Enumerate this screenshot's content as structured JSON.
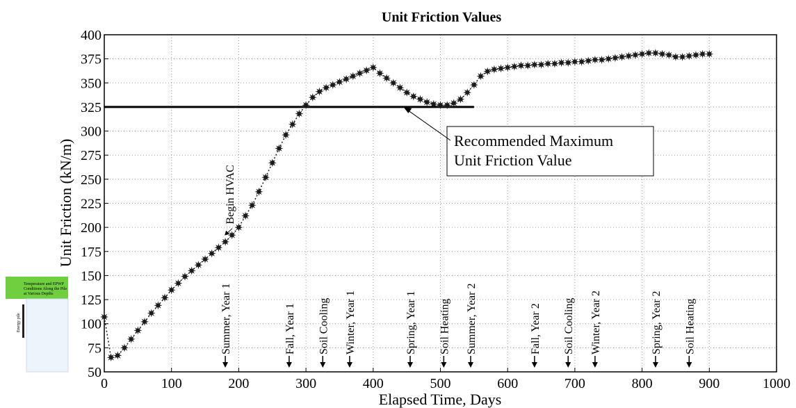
{
  "chart_data": {
    "type": "scatter",
    "title": "Unit Friction Values",
    "xlabel": "Elapsed Time, Days",
    "ylabel": "Unit Friction (kN/m)",
    "xlim": [
      0,
      1000
    ],
    "ylim": [
      50,
      400
    ],
    "xticks": [
      0,
      100,
      200,
      300,
      400,
      500,
      600,
      700,
      800,
      900,
      1000
    ],
    "yticks": [
      50,
      75,
      100,
      125,
      150,
      175,
      200,
      225,
      250,
      275,
      300,
      325,
      350,
      375,
      400
    ],
    "grid": true,
    "series": [
      {
        "color": "#1a1a1a",
        "x": [
          0,
          10,
          20,
          30,
          40,
          50,
          60,
          70,
          80,
          90,
          100,
          110,
          120,
          130,
          140,
          150,
          160,
          170,
          180,
          190,
          200,
          210,
          220,
          230,
          240,
          250,
          260,
          270,
          280,
          290,
          300,
          310,
          320,
          330,
          340,
          350,
          360,
          370,
          380,
          390,
          400,
          410,
          420,
          430,
          440,
          450,
          460,
          470,
          480,
          490,
          500,
          510,
          520,
          530,
          540,
          550,
          560,
          570,
          580,
          590,
          600,
          610,
          620,
          630,
          640,
          650,
          660,
          670,
          680,
          690,
          700,
          710,
          720,
          730,
          740,
          750,
          760,
          770,
          780,
          790,
          800,
          810,
          820,
          830,
          840,
          850,
          860,
          870,
          880,
          890,
          900
        ],
        "values": [
          107,
          65,
          67,
          75,
          84,
          93,
          102,
          111,
          119,
          127,
          135,
          142,
          149,
          155,
          161,
          167,
          173,
          179,
          185,
          192,
          200,
          212,
          223,
          237,
          252,
          267,
          282,
          296,
          307,
          318,
          327,
          335,
          341,
          345,
          348,
          351,
          354,
          357,
          360,
          363,
          366,
          360,
          355,
          350,
          345,
          340,
          336,
          333,
          330,
          328,
          327,
          327,
          329,
          333,
          340,
          348,
          357,
          362,
          364,
          365,
          366,
          367,
          368,
          368,
          369,
          369,
          370,
          370,
          371,
          371,
          372,
          372,
          373,
          374,
          374,
          375,
          376,
          377,
          378,
          379,
          380,
          381,
          381,
          380,
          379,
          377,
          377,
          378,
          379,
          380,
          380
        ]
      }
    ],
    "reference_line": {
      "value": 325,
      "xend": 550
    },
    "callout": {
      "lines": [
        "Recommended Maximum",
        "Unit Friction Value"
      ],
      "x": 445,
      "y": 325
    },
    "hvac": {
      "text": "Begin HVAC",
      "x": 178,
      "y": 196
    },
    "events": [
      {
        "text": "Summer, Year 1",
        "x": 180
      },
      {
        "text": "Fall, Year 1",
        "x": 275
      },
      {
        "text": "Soil Cooling",
        "x": 325
      },
      {
        "text": "Winter, Year 1",
        "x": 365
      },
      {
        "text": "Spring, Year 1",
        "x": 455
      },
      {
        "text": "Soil Heating",
        "x": 505
      },
      {
        "text": "Summer, Year 2",
        "x": 545
      },
      {
        "text": "Fall, Year 2",
        "x": 640
      },
      {
        "text": "Soil Cooling",
        "x": 690
      },
      {
        "text": "Winter, Year 2",
        "x": 730
      },
      {
        "text": "Spring, Year 2",
        "x": 820
      },
      {
        "text": "Soil Heating",
        "x": 870
      }
    ],
    "inset": {
      "caption": [
        "Temperature and EPWP",
        "Conditions Along the Pile",
        "at Various Depths"
      ],
      "pile": "Energy pile"
    }
  }
}
